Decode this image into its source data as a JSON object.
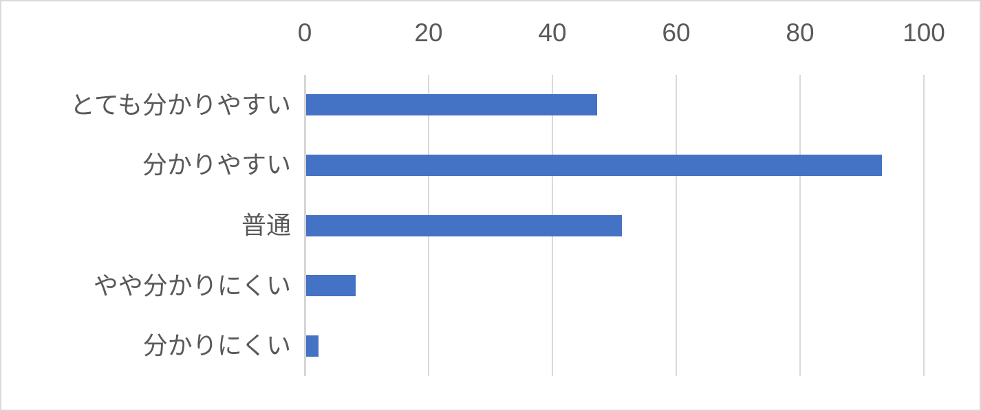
{
  "chart_data": {
    "type": "bar",
    "orientation": "horizontal",
    "title": "",
    "xlabel": "",
    "ylabel": "",
    "categories": [
      "とても分かりやすい",
      "分かりやすい",
      "普通",
      "やや分かりにくい",
      "分かりにくい"
    ],
    "values": [
      47,
      93,
      51,
      8,
      2
    ],
    "xlim": [
      0,
      100
    ],
    "x_ticks": [
      "0",
      "20",
      "40",
      "60",
      "80",
      "100"
    ],
    "x_tick_values": [
      0,
      20,
      40,
      60,
      80,
      100
    ],
    "tick_position": "top",
    "grid": true,
    "legend": false,
    "colors": {
      "bar": "#4472c4",
      "gridline": "#d9d9d9",
      "axis_line": "#d6d6d6",
      "text": "#595959",
      "border": "#d9d9d9",
      "background": "#ffffff"
    }
  }
}
